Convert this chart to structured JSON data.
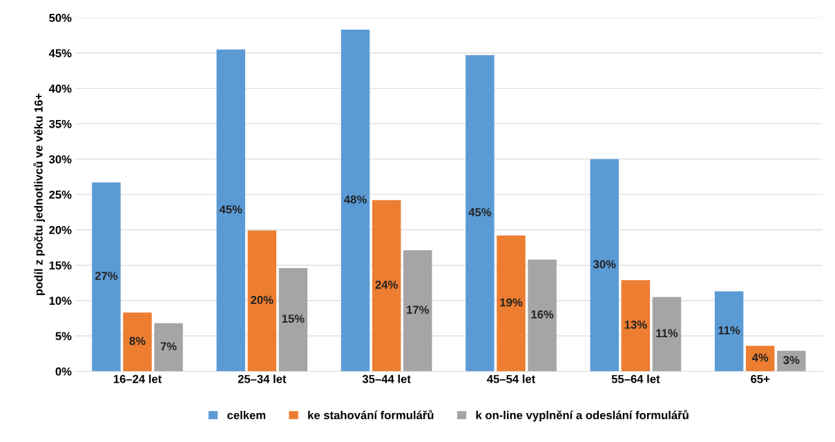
{
  "chart_data": {
    "type": "bar",
    "ylabel": "podíl z počtu jednotlivců ve věku 16+",
    "categories": [
      "16–24 let",
      "25–34 let",
      "35–44 let",
      "45–54 let",
      "55–64 let",
      "65+"
    ],
    "series": [
      {
        "name": "celkem",
        "color": "#5b9bd5",
        "values": [
          26.7,
          45.5,
          48.3,
          44.7,
          30.0,
          11.3
        ],
        "value_labels": [
          "27%",
          "45%",
          "48%",
          "45%",
          "30%",
          "11%"
        ]
      },
      {
        "name": "ke stahování formulářů",
        "color": "#ed7d31",
        "values": [
          8.3,
          19.9,
          24.2,
          19.2,
          12.9,
          3.6
        ],
        "value_labels": [
          "8%",
          "20%",
          "24%",
          "19%",
          "13%",
          "4%"
        ]
      },
      {
        "name": "k on-line vyplnění a odeslání formulářů",
        "color": "#a5a5a5",
        "values": [
          6.8,
          14.6,
          17.1,
          15.8,
          10.5,
          2.9
        ],
        "value_labels": [
          "7%",
          "15%",
          "17%",
          "16%",
          "11%",
          "3%"
        ]
      }
    ],
    "ylim": [
      0,
      50
    ],
    "yticks": [
      {
        "value": 0,
        "label": "0%"
      },
      {
        "value": 5,
        "label": "5%"
      },
      {
        "value": 10,
        "label": "10%"
      },
      {
        "value": 15,
        "label": "15%"
      },
      {
        "value": 20,
        "label": "20%"
      },
      {
        "value": 25,
        "label": "25%"
      },
      {
        "value": 30,
        "label": "30%"
      },
      {
        "value": 35,
        "label": "35%"
      },
      {
        "value": 40,
        "label": "40%"
      },
      {
        "value": 45,
        "label": "45%"
      },
      {
        "value": 50,
        "label": "50%"
      }
    ],
    "grid": "y",
    "legend": "bottom"
  }
}
